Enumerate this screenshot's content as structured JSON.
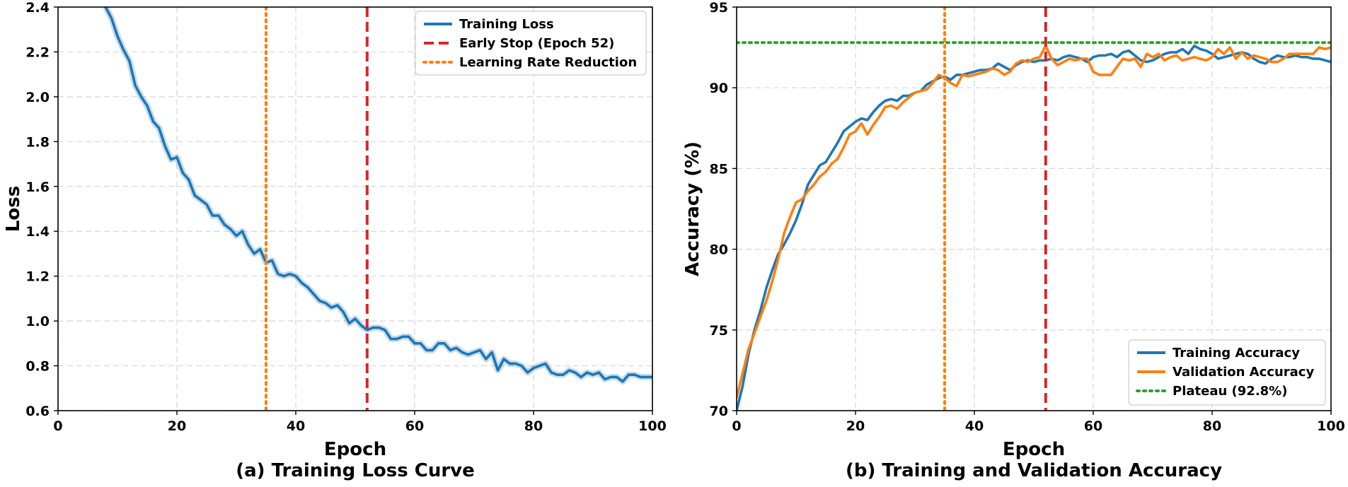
{
  "chart_data": [
    {
      "type": "line",
      "title": "(a) Training Loss Curve",
      "xlabel": "Epoch",
      "ylabel": "Loss",
      "xlim": [
        0,
        100
      ],
      "ylim": [
        0.6,
        2.4
      ],
      "xticks": [
        0,
        20,
        40,
        60,
        80,
        100
      ],
      "yticks": [
        0.6,
        0.8,
        1.0,
        1.2,
        1.4,
        1.6,
        1.8,
        2.0,
        2.2,
        2.4
      ],
      "grid": true,
      "legend_position": "top-right",
      "series": [
        {
          "name": "Training Loss",
          "color": "#1f77b4",
          "x": [
            8,
            9,
            10,
            11,
            12,
            13,
            14,
            15,
            16,
            17,
            18,
            19,
            20,
            21,
            22,
            23,
            24,
            25,
            26,
            27,
            28,
            29,
            30,
            31,
            32,
            33,
            34,
            35,
            36,
            37,
            38,
            39,
            40,
            41,
            42,
            43,
            44,
            45,
            46,
            47,
            48,
            49,
            50,
            51,
            52,
            53,
            54,
            55,
            56,
            57,
            58,
            59,
            60,
            61,
            62,
            63,
            64,
            65,
            66,
            67,
            68,
            69,
            70,
            71,
            72,
            73,
            74,
            75,
            76,
            77,
            78,
            79,
            80,
            81,
            82,
            83,
            84,
            85,
            86,
            87,
            88,
            89,
            90,
            91,
            92,
            93,
            94,
            95,
            96,
            97,
            98,
            99,
            100
          ],
          "values": [
            2.4,
            2.35,
            2.27,
            2.21,
            2.16,
            2.05,
            2.0,
            1.96,
            1.89,
            1.86,
            1.78,
            1.72,
            1.73,
            1.66,
            1.63,
            1.56,
            1.54,
            1.52,
            1.47,
            1.47,
            1.43,
            1.41,
            1.38,
            1.4,
            1.34,
            1.3,
            1.32,
            1.26,
            1.27,
            1.21,
            1.2,
            1.21,
            1.2,
            1.17,
            1.15,
            1.12,
            1.09,
            1.08,
            1.06,
            1.07,
            1.04,
            0.99,
            1.01,
            0.98,
            0.96,
            0.97,
            0.97,
            0.96,
            0.92,
            0.92,
            0.93,
            0.93,
            0.9,
            0.9,
            0.87,
            0.87,
            0.9,
            0.9,
            0.87,
            0.88,
            0.86,
            0.85,
            0.86,
            0.87,
            0.83,
            0.86,
            0.78,
            0.83,
            0.81,
            0.81,
            0.8,
            0.77,
            0.79,
            0.8,
            0.81,
            0.77,
            0.76,
            0.76,
            0.78,
            0.77,
            0.75,
            0.77,
            0.76,
            0.77,
            0.74,
            0.75,
            0.75,
            0.73,
            0.76,
            0.76,
            0.75,
            0.75,
            0.75
          ]
        }
      ],
      "vlines": [
        {
          "name": "Early Stop (Epoch 52)",
          "x": 52,
          "color": "#d62728",
          "style": "dashed"
        },
        {
          "name": "Learning Rate Reduction",
          "x": 35,
          "color": "#ff7f0e",
          "style": "dotted"
        }
      ],
      "legend": [
        "Training Loss",
        "Early Stop (Epoch 52)",
        "Learning Rate Reduction"
      ]
    },
    {
      "type": "line",
      "title": "(b) Training and Validation Accuracy",
      "xlabel": "Epoch",
      "ylabel": "Accuracy (%)",
      "xlim": [
        0,
        100
      ],
      "ylim": [
        70,
        95
      ],
      "xticks": [
        0,
        20,
        40,
        60,
        80,
        100
      ],
      "yticks": [
        70,
        75,
        80,
        85,
        90,
        95
      ],
      "grid": true,
      "legend_position": "bottom-right",
      "series": [
        {
          "name": "Training Accuracy",
          "color": "#1f77b4",
          "x": [
            0,
            1,
            2,
            3,
            4,
            5,
            6,
            7,
            8,
            9,
            10,
            11,
            12,
            13,
            14,
            15,
            16,
            17,
            18,
            19,
            20,
            21,
            22,
            23,
            24,
            25,
            26,
            27,
            28,
            29,
            30,
            31,
            32,
            33,
            34,
            35,
            36,
            37,
            38,
            39,
            40,
            41,
            42,
            43,
            44,
            45,
            46,
            47,
            48,
            49,
            50,
            51,
            52,
            53,
            54,
            55,
            56,
            57,
            58,
            59,
            60,
            61,
            62,
            63,
            64,
            65,
            66,
            67,
            68,
            69,
            70,
            71,
            72,
            73,
            74,
            75,
            76,
            77,
            78,
            79,
            80,
            81,
            82,
            83,
            84,
            85,
            86,
            87,
            88,
            89,
            90,
            91,
            92,
            93,
            94,
            95,
            96,
            97,
            98,
            99,
            100
          ],
          "values": [
            70.0,
            71.5,
            73.5,
            75.0,
            76.2,
            77.6,
            78.7,
            79.7,
            80.3,
            81.0,
            81.8,
            82.8,
            84.0,
            84.6,
            85.2,
            85.4,
            86.0,
            86.6,
            87.3,
            87.6,
            87.9,
            88.1,
            88.0,
            88.5,
            88.9,
            89.2,
            89.3,
            89.2,
            89.5,
            89.5,
            89.7,
            89.8,
            90.2,
            90.4,
            90.6,
            90.7,
            90.5,
            90.8,
            90.8,
            90.9,
            91.0,
            91.1,
            91.1,
            91.2,
            91.5,
            91.3,
            91.1,
            91.4,
            91.6,
            91.7,
            91.6,
            91.7,
            91.7,
            91.8,
            91.7,
            91.9,
            92.0,
            91.9,
            91.8,
            91.6,
            91.9,
            92.0,
            92.0,
            92.1,
            91.9,
            92.2,
            92.3,
            92.0,
            91.7,
            91.6,
            91.7,
            91.9,
            92.1,
            92.2,
            92.2,
            92.4,
            92.1,
            92.6,
            92.4,
            92.3,
            92.1,
            91.8,
            91.9,
            92.0,
            92.1,
            92.2,
            92.1,
            91.8,
            91.6,
            91.5,
            91.8,
            92.0,
            91.9,
            91.9,
            92.0,
            91.9,
            91.9,
            91.8,
            91.8,
            91.7,
            91.6
          ]
        },
        {
          "name": "Validation Accuracy",
          "color": "#ff7f0e",
          "x": [
            0,
            1,
            2,
            3,
            4,
            5,
            6,
            7,
            8,
            9,
            10,
            11,
            12,
            13,
            14,
            15,
            16,
            17,
            18,
            19,
            20,
            21,
            22,
            23,
            24,
            25,
            26,
            27,
            28,
            29,
            30,
            31,
            32,
            33,
            34,
            35,
            36,
            37,
            38,
            39,
            40,
            41,
            42,
            43,
            44,
            45,
            46,
            47,
            48,
            49,
            50,
            51,
            52,
            53,
            54,
            55,
            56,
            57,
            58,
            59,
            60,
            61,
            62,
            63,
            64,
            65,
            66,
            67,
            68,
            69,
            70,
            71,
            72,
            73,
            74,
            75,
            76,
            77,
            78,
            79,
            80,
            81,
            82,
            83,
            84,
            85,
            86,
            87,
            88,
            89,
            90,
            91,
            92,
            93,
            94,
            95,
            96,
            97,
            98,
            99,
            100
          ],
          "values": [
            70.8,
            72.3,
            73.8,
            74.8,
            75.8,
            76.8,
            78.0,
            79.4,
            81.0,
            82.0,
            82.9,
            83.1,
            83.6,
            84.0,
            84.5,
            84.8,
            85.3,
            85.6,
            86.3,
            87.1,
            87.3,
            87.8,
            87.1,
            87.7,
            88.2,
            88.8,
            88.9,
            88.7,
            89.1,
            89.4,
            89.7,
            89.8,
            89.9,
            90.3,
            90.8,
            90.6,
            90.3,
            90.1,
            90.8,
            90.7,
            90.8,
            90.9,
            91.0,
            91.2,
            91.1,
            90.8,
            91.0,
            91.5,
            91.7,
            91.6,
            91.8,
            91.9,
            92.6,
            91.8,
            91.4,
            91.6,
            91.8,
            91.7,
            91.8,
            91.8,
            91.0,
            90.8,
            90.8,
            90.8,
            91.3,
            91.8,
            91.7,
            91.8,
            91.3,
            92.1,
            91.9,
            92.1,
            91.7,
            91.9,
            92.0,
            91.7,
            91.8,
            91.9,
            91.8,
            91.7,
            91.9,
            92.4,
            92.1,
            92.5,
            91.8,
            92.2,
            91.8,
            92.0,
            91.9,
            91.8,
            91.6,
            91.6,
            91.8,
            92.1,
            92.1,
            92.1,
            92.1,
            92.1,
            92.5,
            92.4,
            92.5
          ]
        }
      ],
      "hlines": [
        {
          "name": "Plateau (92.8%)",
          "y": 92.8,
          "color": "#2ca02c",
          "style": "dotted"
        }
      ],
      "vlines": [
        {
          "name": "Learning Rate Reduction",
          "x": 35,
          "color": "#ff7f0e",
          "style": "dotted"
        },
        {
          "name": "Early Stop (Epoch 52)",
          "x": 52,
          "color": "#d62728",
          "style": "dashed"
        }
      ],
      "legend": [
        "Training Accuracy",
        "Validation Accuracy",
        "Plateau (92.8%)"
      ]
    }
  ]
}
